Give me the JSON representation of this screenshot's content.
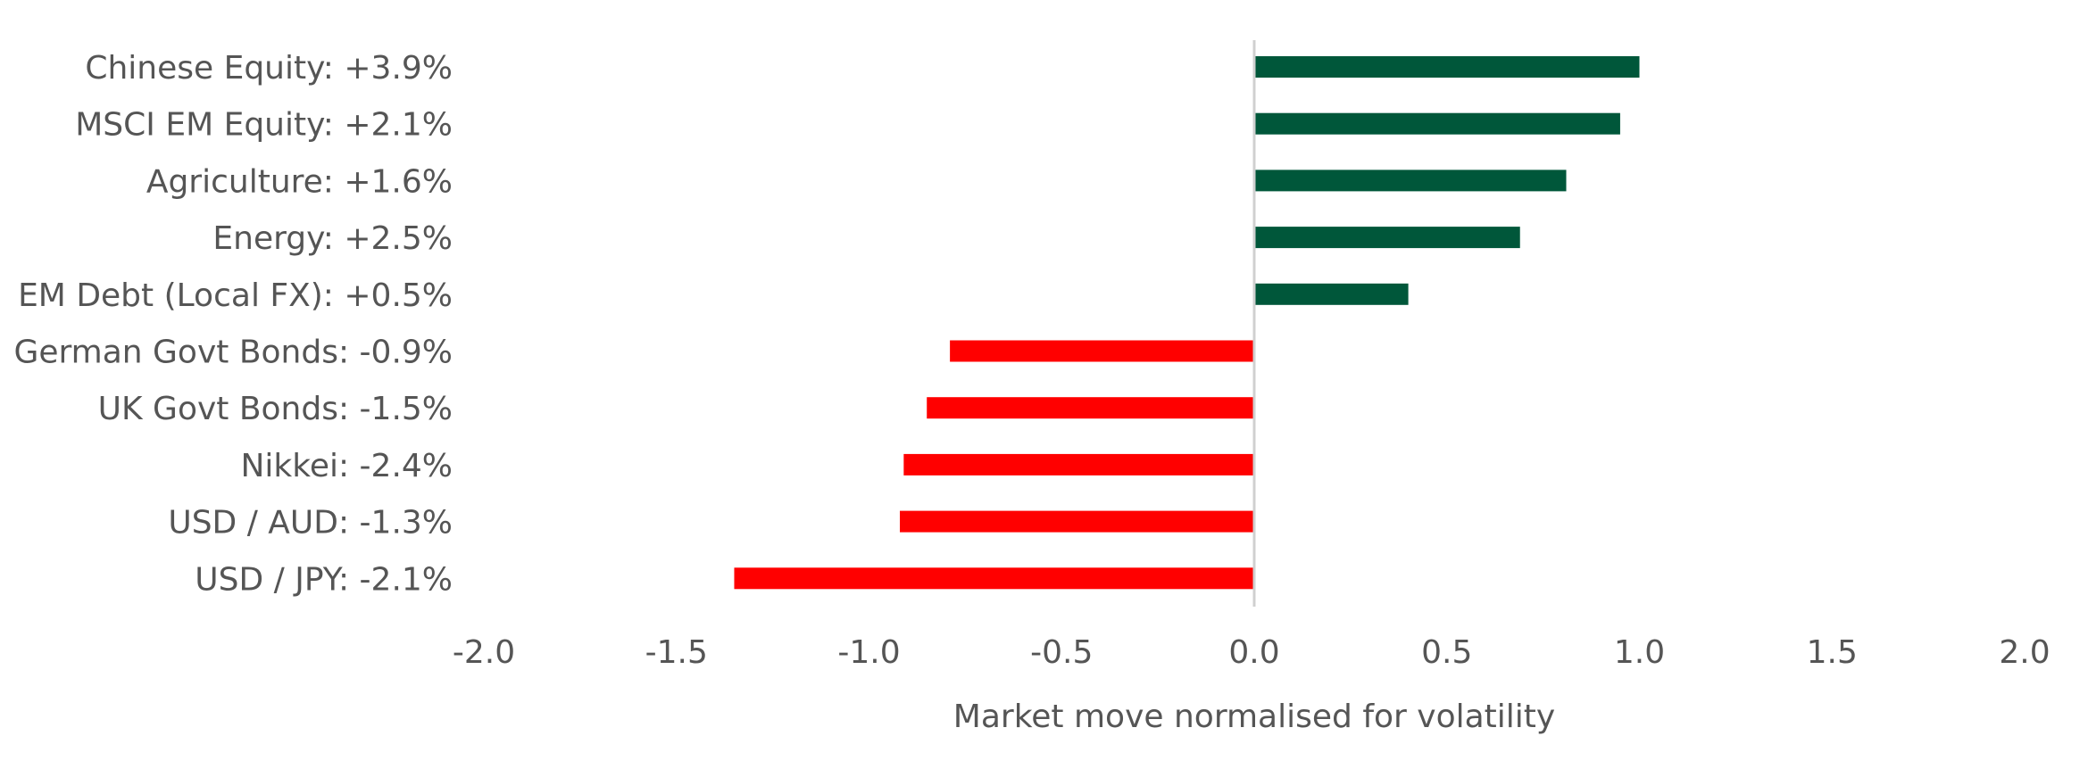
{
  "chart_data": {
    "type": "bar",
    "orientation": "horizontal",
    "categories": [
      "Chinese Equity: +3.9%",
      "MSCI EM Equity: +2.1%",
      "Agriculture: +1.6%",
      "Energy: +2.5%",
      "EM Debt (Local FX): +0.5%",
      "German Govt Bonds: -0.9%",
      "UK Govt Bonds: -1.5%",
      "Nikkei: -2.4%",
      "USD / AUD: -1.3%",
      "USD / JPY: -2.1%"
    ],
    "values": [
      1.0,
      0.95,
      0.81,
      0.69,
      0.4,
      -0.79,
      -0.85,
      -0.91,
      -0.92,
      -1.35
    ],
    "xlabel": "Market move normalised for volatility",
    "ylabel": "",
    "xlim": [
      -2.0,
      2.0
    ],
    "xticks": [
      "-2.0",
      "-1.5",
      "-1.0",
      "-0.5",
      "0.0",
      "0.5",
      "1.0",
      "1.5",
      "2.0"
    ],
    "grid": false,
    "colors": {
      "positive": "#00573A",
      "negative": "#FF0000",
      "zero_line": "#D0D0D0",
      "text": "#555555"
    }
  }
}
